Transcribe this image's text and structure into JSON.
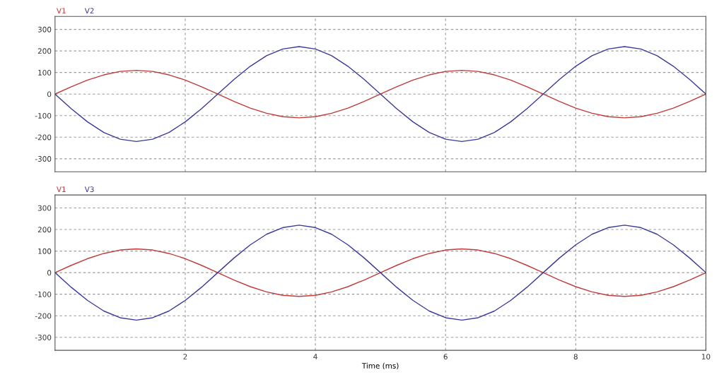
{
  "chart_data": [
    {
      "type": "line",
      "x": [
        0,
        0.25,
        0.5,
        0.75,
        1,
        1.25,
        1.5,
        1.75,
        2,
        2.25,
        2.5,
        2.75,
        3,
        3.25,
        3.5,
        3.75,
        4,
        4.25,
        4.5,
        4.75,
        5,
        5.25,
        5.5,
        5.75,
        6,
        6.25,
        6.5,
        6.75,
        7,
        7.25,
        7.5,
        7.75,
        8,
        8.25,
        8.5,
        8.75,
        9,
        9.25,
        9.5,
        9.75,
        10
      ],
      "series": [
        {
          "name": "V1",
          "color": "#c03a3a",
          "values": [
            0,
            34,
            65,
            89,
            105,
            110,
            105,
            89,
            65,
            34,
            0,
            -34,
            -65,
            -89,
            -105,
            -110,
            -105,
            -89,
            -65,
            -34,
            0,
            34,
            65,
            89,
            105,
            110,
            105,
            89,
            65,
            34,
            0,
            -34,
            -65,
            -89,
            -105,
            -110,
            -105,
            -89,
            -65,
            -34,
            0
          ]
        },
        {
          "name": "V2",
          "color": "#3a3a9a",
          "values": [
            0,
            -68,
            -129,
            -178,
            -209,
            -220,
            -209,
            -178,
            -129,
            -68,
            0,
            68,
            129,
            178,
            209,
            220,
            209,
            178,
            129,
            68,
            0,
            -68,
            -129,
            -178,
            -209,
            -220,
            -209,
            -178,
            -129,
            -68,
            0,
            68,
            129,
            178,
            209,
            220,
            209,
            178,
            129,
            68,
            0
          ]
        }
      ],
      "xlim": [
        0,
        10
      ],
      "xticks": [
        2,
        4,
        6,
        8,
        10
      ],
      "ylim": [
        -360,
        360
      ],
      "yticks": [
        300,
        200,
        100,
        0,
        -100,
        -200,
        -300
      ],
      "grid": true,
      "legend": "top left",
      "tick_labels": "y",
      "line_style": "solid",
      "marker": "none"
    },
    {
      "type": "line",
      "x": [
        0,
        0.25,
        0.5,
        0.75,
        1,
        1.25,
        1.5,
        1.75,
        2,
        2.25,
        2.5,
        2.75,
        3,
        3.25,
        3.5,
        3.75,
        4,
        4.25,
        4.5,
        4.75,
        5,
        5.25,
        5.5,
        5.75,
        6,
        6.25,
        6.5,
        6.75,
        7,
        7.25,
        7.5,
        7.75,
        8,
        8.25,
        8.5,
        8.75,
        9,
        9.25,
        9.5,
        9.75,
        10
      ],
      "series": [
        {
          "name": "V1",
          "color": "#c03a3a",
          "values": [
            0,
            34,
            65,
            89,
            105,
            110,
            105,
            89,
            65,
            34,
            0,
            -34,
            -65,
            -89,
            -105,
            -110,
            -105,
            -89,
            -65,
            -34,
            0,
            34,
            65,
            89,
            105,
            110,
            105,
            89,
            65,
            34,
            0,
            -34,
            -65,
            -89,
            -105,
            -110,
            -105,
            -89,
            -65,
            -34,
            0
          ]
        },
        {
          "name": "V3",
          "color": "#3a3a9a",
          "values": [
            0,
            -68,
            -129,
            -178,
            -209,
            -220,
            -209,
            -178,
            -129,
            -68,
            0,
            68,
            129,
            178,
            209,
            220,
            209,
            178,
            129,
            68,
            0,
            -68,
            -129,
            -178,
            -209,
            -220,
            -209,
            -178,
            -129,
            -68,
            0,
            68,
            129,
            178,
            209,
            220,
            209,
            178,
            129,
            68,
            0
          ]
        }
      ],
      "xlim": [
        0,
        10
      ],
      "xticks": [
        2,
        4,
        6,
        8,
        10
      ],
      "ylim": [
        -360,
        360
      ],
      "yticks": [
        300,
        200,
        100,
        0,
        -100,
        -200,
        -300
      ],
      "xlabel": "Time (ms)",
      "grid": true,
      "legend": "top left",
      "line_style": "solid",
      "marker": "none"
    }
  ]
}
